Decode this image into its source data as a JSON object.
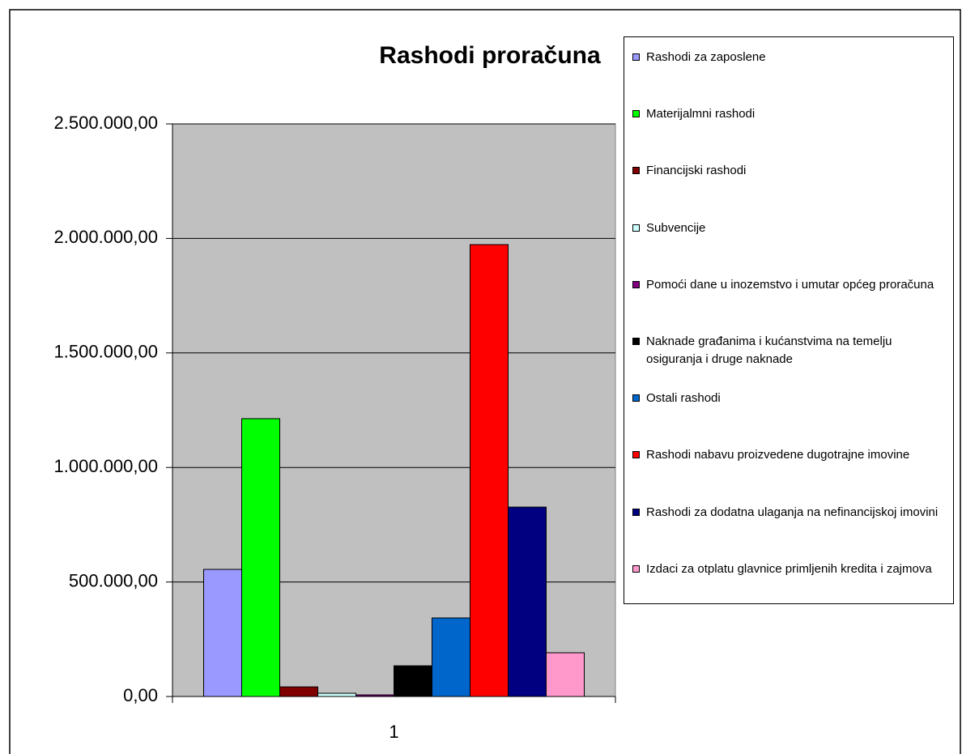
{
  "chart_data": {
    "type": "bar",
    "title": "Rashodi proračuna",
    "categories": [
      "1"
    ],
    "series": [
      {
        "name": "Rashodi za zaposlene",
        "color": "#9999ff",
        "values": [
          555000
        ]
      },
      {
        "name": "Materijalmni rashodi",
        "color": "#00ff00",
        "values": [
          1213000
        ]
      },
      {
        "name": "Financijski rashodi",
        "color": "#800000",
        "values": [
          42000
        ]
      },
      {
        "name": "Subvencije",
        "color": "#ccffff",
        "values": [
          14000
        ]
      },
      {
        "name": "Pomoći dane u inozemstvo i umutar općeg proračuna",
        "color": "#800080",
        "values": [
          7000
        ]
      },
      {
        "name": "Naknade građanima i kućanstvima na temelju osiguranja i druge naknade",
        "color": "#000000",
        "values": [
          134000
        ]
      },
      {
        "name": "Ostali rashodi",
        "color": "#0066cc",
        "values": [
          343000
        ]
      },
      {
        "name": "Rashodi nabavu proizvedene dugotrajne imovine",
        "color": "#ff0000",
        "values": [
          1973000
        ]
      },
      {
        "name": "Rashodi za dodatna ulaganja na nefinancijskoj imovini",
        "color": "#000080",
        "values": [
          827000
        ]
      },
      {
        "name": "Izdaci za otplatu glavnice primljenih kredita i zajmova",
        "color": "#ff99cc",
        "values": [
          191000
        ]
      }
    ],
    "ylim": [
      0,
      2500000
    ],
    "yticks": [
      {
        "value": 0,
        "label": "0,00"
      },
      {
        "value": 500000,
        "label": "500.000,00"
      },
      {
        "value": 1000000,
        "label": "1.000.000,00"
      },
      {
        "value": 1500000,
        "label": "1.500.000,00"
      },
      {
        "value": 2000000,
        "label": "2.000.000,00"
      },
      {
        "value": 2500000,
        "label": "2.500.000,00"
      }
    ],
    "grid": true,
    "legend": "right",
    "plot_background": "#c0c0c0"
  }
}
